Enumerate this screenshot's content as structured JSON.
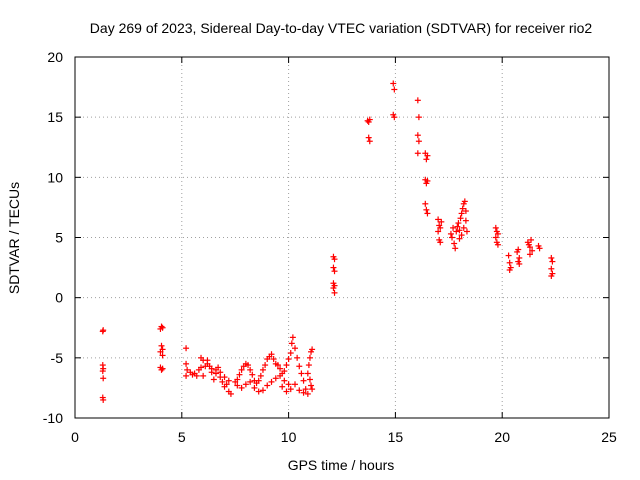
{
  "chart_data": {
    "type": "scatter",
    "title": "Day 269 of 2023, Sidereal Day-to-day VTEC variation (SDTVAR) for receiver rio2",
    "xlabel": "GPS time / hours",
    "ylabel": "SDTVAR / TECUs",
    "xlim": [
      0,
      25
    ],
    "ylim": [
      -10,
      20
    ],
    "xticks": [
      0,
      5,
      10,
      15,
      20,
      25
    ],
    "yticks": [
      -10,
      -5,
      0,
      5,
      10,
      15,
      20
    ],
    "grid": true,
    "marker": "+",
    "color": "#ff0000",
    "series": [
      {
        "name": "SDTVAR",
        "points": [
          [
            1.3,
            -2.8
          ],
          [
            1.32,
            -2.7
          ],
          [
            1.3,
            -5.6
          ],
          [
            1.32,
            -5.9
          ],
          [
            1.3,
            -6.1
          ],
          [
            1.32,
            -6.7
          ],
          [
            1.3,
            -8.3
          ],
          [
            1.32,
            -8.5
          ],
          [
            4.0,
            -2.6
          ],
          [
            4.05,
            -2.4
          ],
          [
            4.1,
            -2.5
          ],
          [
            4.05,
            -4.0
          ],
          [
            4.1,
            -4.3
          ],
          [
            4.0,
            -4.5
          ],
          [
            4.1,
            -4.8
          ],
          [
            4.0,
            -5.8
          ],
          [
            4.05,
            -6.0
          ],
          [
            4.1,
            -5.9
          ],
          [
            5.2,
            -4.2
          ],
          [
            5.2,
            -5.5
          ],
          [
            5.25,
            -6.0
          ],
          [
            5.2,
            -6.5
          ],
          [
            5.4,
            -6.2
          ],
          [
            5.5,
            -6.4
          ],
          [
            5.6,
            -6.3
          ],
          [
            5.7,
            -6.5
          ],
          [
            5.8,
            -6.0
          ],
          [
            5.9,
            -5.8
          ],
          [
            6.0,
            -6.5
          ],
          [
            6.1,
            -5.7
          ],
          [
            6.2,
            -5.2
          ],
          [
            6.3,
            -5.7
          ],
          [
            6.4,
            -6.2
          ],
          [
            6.5,
            -6.8
          ],
          [
            6.6,
            -6.3
          ],
          [
            6.7,
            -5.8
          ],
          [
            6.8,
            -6.6
          ],
          [
            6.9,
            -7.0
          ],
          [
            7.0,
            -7.4
          ],
          [
            7.1,
            -7.2
          ],
          [
            7.2,
            -7.8
          ],
          [
            7.3,
            -8.0
          ],
          [
            5.9,
            -5.0
          ],
          [
            6.0,
            -5.2
          ],
          [
            6.2,
            -5.5
          ],
          [
            6.4,
            -5.9
          ],
          [
            6.6,
            -6.0
          ],
          [
            6.8,
            -6.2
          ],
          [
            7.0,
            -6.6
          ],
          [
            7.2,
            -6.9
          ],
          [
            7.5,
            -7.0
          ],
          [
            7.6,
            -6.8
          ],
          [
            7.7,
            -6.4
          ],
          [
            7.8,
            -6.0
          ],
          [
            7.9,
            -5.7
          ],
          [
            8.0,
            -5.5
          ],
          [
            8.1,
            -5.6
          ],
          [
            8.2,
            -6.0
          ],
          [
            8.3,
            -6.4
          ],
          [
            8.4,
            -6.9
          ],
          [
            8.5,
            -7.1
          ],
          [
            8.6,
            -6.9
          ],
          [
            8.7,
            -6.5
          ],
          [
            8.8,
            -6.0
          ],
          [
            8.9,
            -5.6
          ],
          [
            9.0,
            -5.1
          ],
          [
            9.1,
            -4.9
          ],
          [
            9.2,
            -4.7
          ],
          [
            9.3,
            -5.1
          ],
          [
            9.4,
            -5.5
          ],
          [
            7.6,
            -7.3
          ],
          [
            7.8,
            -7.5
          ],
          [
            8.0,
            -7.2
          ],
          [
            8.2,
            -7.0
          ],
          [
            8.4,
            -7.5
          ],
          [
            8.6,
            -7.8
          ],
          [
            8.8,
            -7.7
          ],
          [
            9.0,
            -7.3
          ],
          [
            9.2,
            -7.0
          ],
          [
            9.4,
            -6.7
          ],
          [
            9.6,
            -6.5
          ],
          [
            9.8,
            -6.9
          ],
          [
            10.0,
            -7.2
          ],
          [
            9.5,
            -5.6
          ],
          [
            9.6,
            -5.9
          ],
          [
            9.7,
            -6.3
          ],
          [
            9.8,
            -6.1
          ],
          [
            9.9,
            -5.6
          ],
          [
            10.0,
            -5.1
          ],
          [
            10.1,
            -4.6
          ],
          [
            10.15,
            -3.8
          ],
          [
            10.2,
            -3.3
          ],
          [
            10.3,
            -4.2
          ],
          [
            10.4,
            -5.0
          ],
          [
            10.5,
            -5.7
          ],
          [
            10.6,
            -6.3
          ],
          [
            10.7,
            -6.9
          ],
          [
            10.8,
            -7.6
          ],
          [
            10.9,
            -8.0
          ],
          [
            9.7,
            -7.4
          ],
          [
            9.9,
            -7.8
          ],
          [
            10.1,
            -7.6
          ],
          [
            10.3,
            -7.2
          ],
          [
            10.5,
            -7.7
          ],
          [
            10.7,
            -7.9
          ],
          [
            10.9,
            -6.3
          ],
          [
            10.95,
            -5.6
          ],
          [
            11.0,
            -5.0
          ],
          [
            11.05,
            -4.5
          ],
          [
            11.1,
            -4.3
          ],
          [
            11.0,
            -6.8
          ],
          [
            11.05,
            -7.3
          ],
          [
            11.1,
            -7.6
          ],
          [
            12.1,
            3.4
          ],
          [
            12.15,
            3.2
          ],
          [
            12.1,
            2.5
          ],
          [
            12.15,
            2.2
          ],
          [
            12.1,
            1.2
          ],
          [
            12.15,
            1.0
          ],
          [
            12.1,
            0.8
          ],
          [
            12.15,
            0.4
          ],
          [
            13.7,
            14.7
          ],
          [
            13.75,
            14.6
          ],
          [
            13.8,
            14.8
          ],
          [
            13.75,
            13.3
          ],
          [
            13.8,
            13.0
          ],
          [
            14.9,
            17.8
          ],
          [
            14.95,
            17.3
          ],
          [
            14.9,
            15.2
          ],
          [
            14.95,
            15.0
          ],
          [
            16.05,
            16.4
          ],
          [
            16.1,
            15.0
          ],
          [
            16.05,
            13.5
          ],
          [
            16.1,
            13.0
          ],
          [
            16.05,
            12.0
          ],
          [
            16.4,
            12.0
          ],
          [
            16.45,
            11.5
          ],
          [
            16.5,
            11.8
          ],
          [
            16.4,
            9.8
          ],
          [
            16.45,
            9.5
          ],
          [
            16.5,
            9.7
          ],
          [
            16.4,
            7.8
          ],
          [
            16.45,
            7.3
          ],
          [
            16.5,
            7.0
          ],
          [
            17.0,
            6.5
          ],
          [
            17.05,
            6.0
          ],
          [
            17.1,
            5.8
          ],
          [
            17.15,
            6.3
          ],
          [
            17.0,
            5.5
          ],
          [
            17.05,
            4.8
          ],
          [
            17.1,
            4.6
          ],
          [
            17.6,
            5.3
          ],
          [
            17.65,
            5.0
          ],
          [
            17.7,
            5.8
          ],
          [
            17.75,
            4.5
          ],
          [
            17.8,
            4.1
          ],
          [
            17.85,
            5.5
          ],
          [
            17.9,
            5.9
          ],
          [
            17.95,
            6.2
          ],
          [
            18.0,
            5.6
          ],
          [
            18.05,
            6.6
          ],
          [
            18.1,
            7.0
          ],
          [
            18.15,
            7.4
          ],
          [
            18.2,
            7.8
          ],
          [
            18.25,
            8.0
          ],
          [
            18.3,
            7.2
          ],
          [
            18.1,
            5.2
          ],
          [
            18.2,
            5.8
          ],
          [
            18.3,
            6.4
          ],
          [
            18.35,
            5.5
          ],
          [
            18.0,
            4.9
          ],
          [
            19.7,
            5.8
          ],
          [
            19.75,
            5.5
          ],
          [
            19.8,
            5.3
          ],
          [
            19.7,
            5.0
          ],
          [
            19.75,
            4.6
          ],
          [
            19.8,
            4.4
          ],
          [
            20.3,
            3.5
          ],
          [
            20.35,
            2.9
          ],
          [
            20.4,
            2.5
          ],
          [
            20.35,
            2.3
          ],
          [
            20.7,
            3.8
          ],
          [
            20.75,
            4.0
          ],
          [
            20.8,
            3.3
          ],
          [
            20.75,
            3.0
          ],
          [
            20.8,
            2.8
          ],
          [
            21.2,
            4.6
          ],
          [
            21.25,
            4.4
          ],
          [
            21.3,
            4.2
          ],
          [
            21.35,
            4.8
          ],
          [
            21.4,
            3.9
          ],
          [
            21.3,
            3.6
          ],
          [
            21.7,
            4.3
          ],
          [
            21.75,
            4.1
          ],
          [
            22.3,
            3.3
          ],
          [
            22.35,
            3.0
          ],
          [
            22.3,
            2.4
          ],
          [
            22.35,
            2.0
          ],
          [
            22.3,
            1.8
          ]
        ]
      }
    ]
  }
}
